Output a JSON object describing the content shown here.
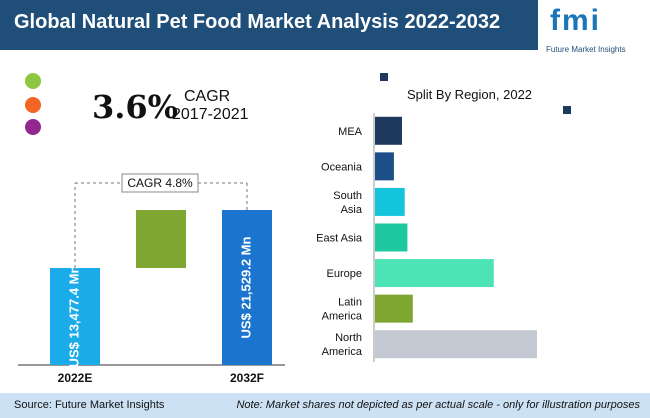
{
  "header": {
    "title": "Global Natural Pet Food Market Analysis 2022-2032"
  },
  "logo": {
    "text": "fmi",
    "subtitle": "Future Market Insights"
  },
  "cagr": {
    "value": "3.6%",
    "label": "CAGR",
    "years": "2017-2021"
  },
  "footer": {
    "source": "Source: Future Market Insights",
    "note": "Note: Market shares not depicted as per actual scale - only for illustration purposes"
  },
  "colors": {
    "header_bg": "#1f4e79",
    "accent_blue": "#1b75bb",
    "dot_green": "#8dc63f",
    "dot_orange": "#f26522",
    "dot_purple": "#92278f"
  },
  "chart_data": [
    {
      "type": "bar",
      "categories": [
        "2022E",
        "2032F"
      ],
      "value_labels": [
        "US$ 13,477.4 Mn",
        "US$ 21,529.2 Mn"
      ],
      "values": [
        13477.4,
        21529.2
      ],
      "annotation": "CAGR 4.8%",
      "colors": [
        "#1aabe8",
        "#1b75cf",
        "#7fa630"
      ]
    },
    {
      "type": "bar",
      "orientation": "horizontal",
      "title": "Split By Region, 2022",
      "categories": [
        "MEA",
        "Oceania",
        "South Asia",
        "East Asia",
        "Europe",
        "Latin America",
        "North America"
      ],
      "category_lines": [
        [
          "MEA"
        ],
        [
          "Oceania"
        ],
        [
          "South",
          "Asia"
        ],
        [
          "East Asia"
        ],
        [
          "Europe"
        ],
        [
          "Latin",
          "America"
        ],
        [
          "North",
          "America"
        ]
      ],
      "values": [
        5,
        3.5,
        5.5,
        6,
        22,
        7,
        30
      ],
      "colors": [
        "#1f3a5f",
        "#1c4f8a",
        "#14c3dc",
        "#1ec9a0",
        "#4de3b4",
        "#7fa630",
        "#c5c9d3"
      ]
    }
  ]
}
